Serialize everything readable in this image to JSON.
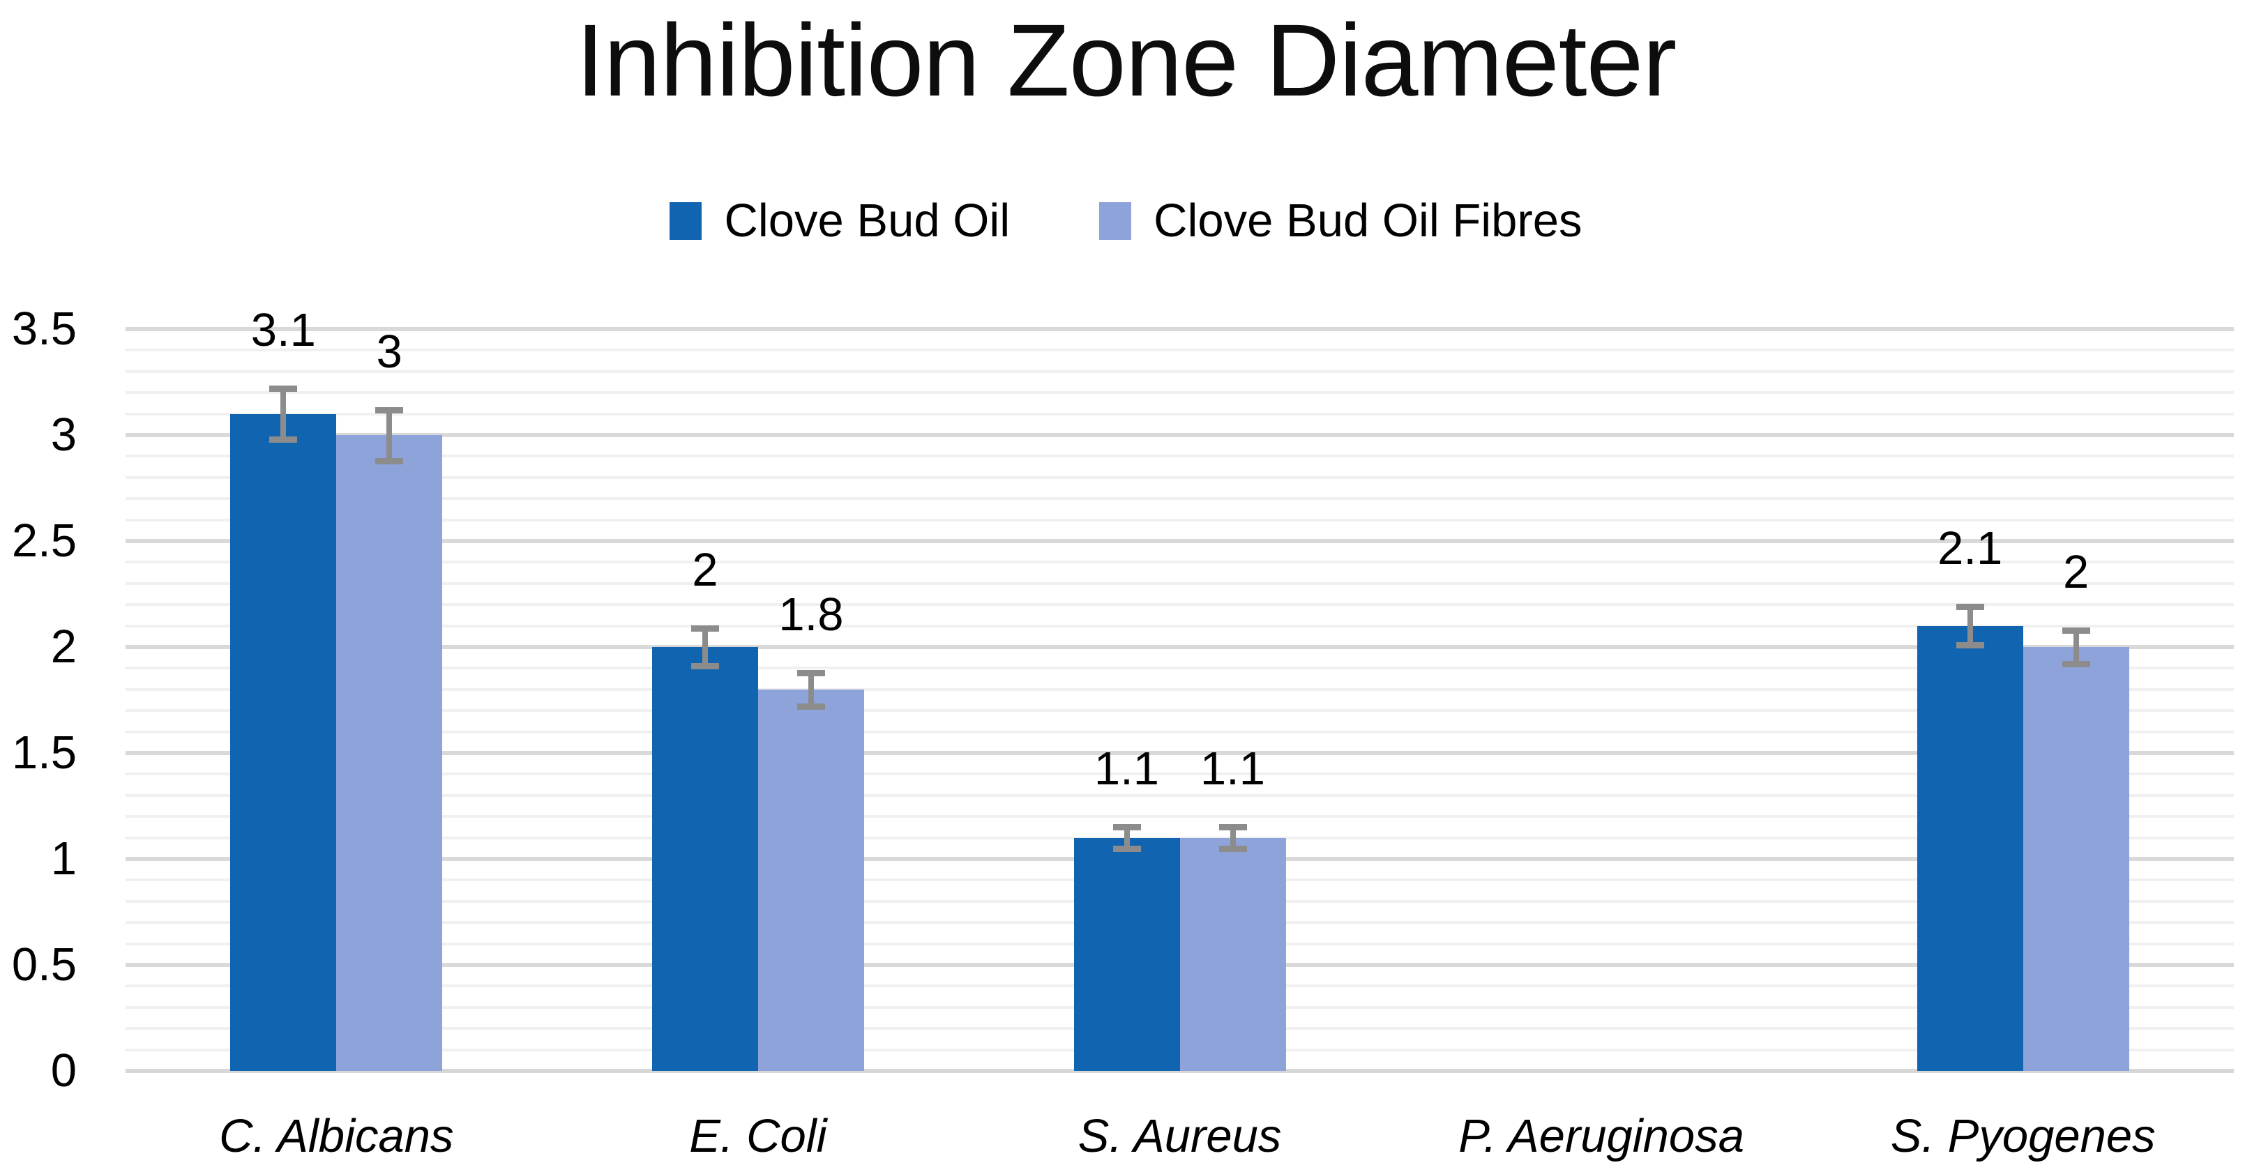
{
  "title": "Inhibition Zone Diameter",
  "chart_data": {
    "type": "bar",
    "title": "Inhibition Zone Diameter",
    "categories": [
      "C. Albicans",
      "E. Coli",
      "S. Aureus",
      "P. Aeruginosa",
      "S. Pyogenes"
    ],
    "series": [
      {
        "name": "Clove Bud Oil",
        "color": "#1164b0",
        "values": [
          3.1,
          2,
          1.1,
          0,
          2.1
        ],
        "labels": [
          "3.1",
          "2",
          "1.1",
          "",
          "2.1"
        ],
        "errors": [
          0.12,
          0.09,
          0.05,
          0,
          0.09
        ]
      },
      {
        "name": "Clove Bud Oil Fibres",
        "color": "#8da3d9",
        "values": [
          3,
          1.8,
          1.1,
          0,
          2
        ],
        "labels": [
          "3",
          "1.8",
          "1.1",
          "",
          "2"
        ],
        "errors": [
          0.12,
          0.08,
          0.05,
          0,
          0.08
        ]
      }
    ],
    "xlabel": "",
    "ylabel": "",
    "ylim": [
      0,
      3.5
    ],
    "y_ticks": [
      "0",
      "0.5",
      "1",
      "1.5",
      "2",
      "2.5",
      "3",
      "3.5"
    ],
    "y_major_unit": 0.5,
    "y_minor_unit": 0.1,
    "grid": "major-and-minor-horizontal",
    "legend_position": "top",
    "error_bar_color": "#8c8c8c",
    "major_grid_color": "#d9d9d9",
    "minor_grid_color": "#f0f0f0"
  }
}
